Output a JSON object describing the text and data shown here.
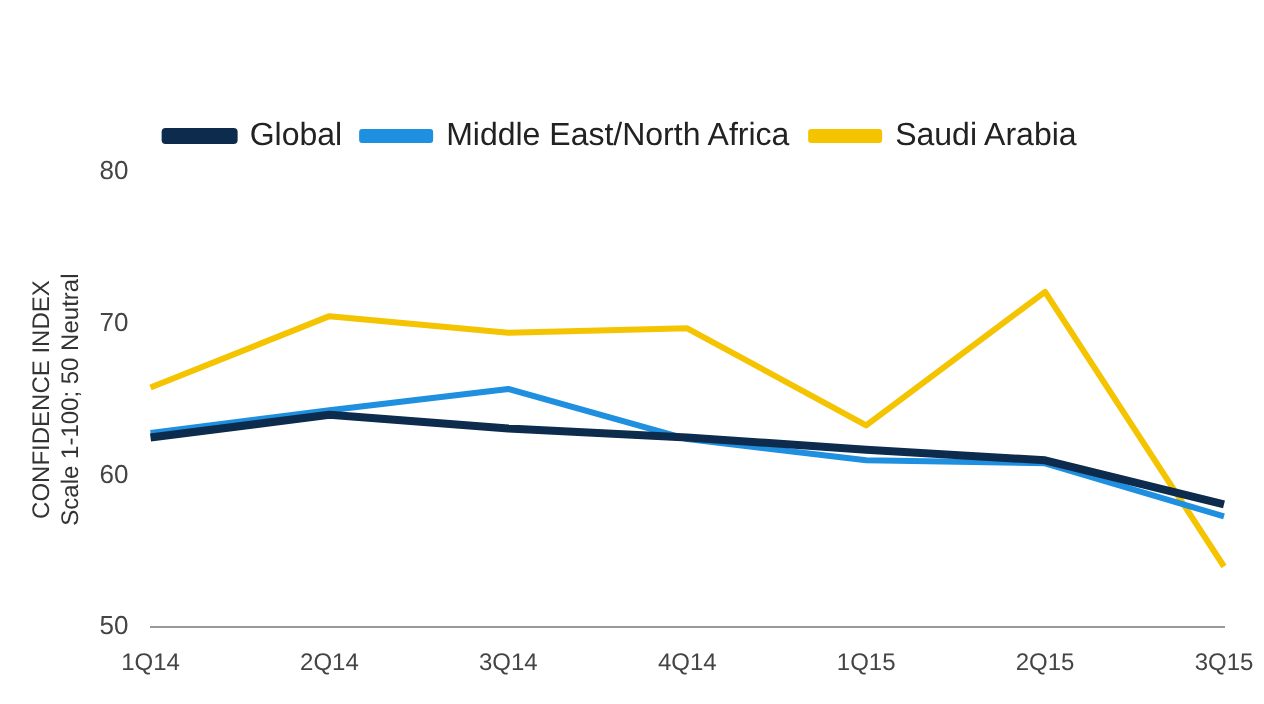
{
  "chart_data": {
    "type": "line",
    "ylabel": "CONFIDENCE INDEX\nScale 1-100; 50 Neutral",
    "categories": [
      "1Q14",
      "2Q14",
      "3Q14",
      "4Q14",
      "1Q15",
      "2Q15",
      "3Q15"
    ],
    "series": [
      {
        "name": "Global",
        "color": "#0d2b4c",
        "values": [
          62.5,
          64.0,
          63.1,
          62.5,
          61.7,
          61.0,
          58.1
        ]
      },
      {
        "name": "Middle East/North Africa",
        "color": "#1f8fe0",
        "values": [
          62.8,
          64.3,
          65.7,
          62.4,
          61.0,
          60.8,
          57.3
        ]
      },
      {
        "name": "Saudi Arabia",
        "color": "#f5c400",
        "values": [
          65.8,
          70.5,
          69.4,
          69.7,
          63.3,
          72.1,
          54.0
        ]
      }
    ],
    "ylim": [
      50,
      80
    ],
    "yticks": [
      50,
      60,
      70,
      80
    ],
    "grid": false,
    "legend": "top",
    "marker": "none",
    "line_style": "solid"
  }
}
